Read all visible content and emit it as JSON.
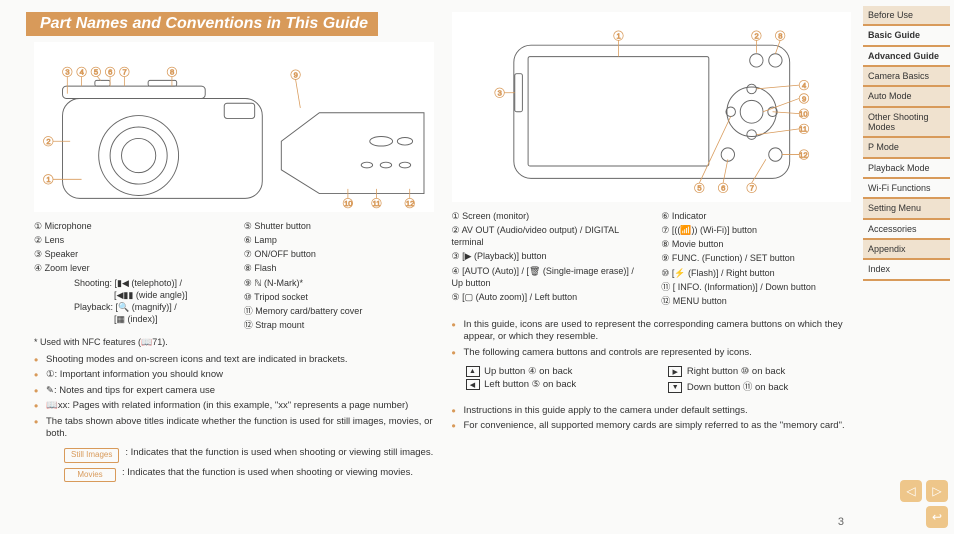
{
  "accent_color": "#d89a5a",
  "title": "Part Names and Conventions in This Guide",
  "page_number": "3",
  "left": {
    "parts_col1": [
      {
        "n": "①",
        "t": "Microphone"
      },
      {
        "n": "②",
        "t": "Lens"
      },
      {
        "n": "③",
        "t": "Speaker"
      },
      {
        "n": "④",
        "t": "Zoom lever"
      }
    ],
    "zoom_shoot_label": "Shooting:",
    "zoom_shoot_a": "[▮◀ (telephoto)] /",
    "zoom_shoot_b": "[◀▮▮ (wide angle)]",
    "zoom_play_label": "Playback:",
    "zoom_play_a": "[🔍 (magnify)] /",
    "zoom_play_b": "[▦ (index)]",
    "parts_col2": [
      {
        "n": "⑤",
        "t": "Shutter button"
      },
      {
        "n": "⑥",
        "t": "Lamp"
      },
      {
        "n": "⑦",
        "t": "ON/OFF button"
      },
      {
        "n": "⑧",
        "t": "Flash"
      },
      {
        "n": "⑨",
        "t": "ℕ (N-Mark)*"
      },
      {
        "n": "⑩",
        "t": "Tripod socket"
      },
      {
        "n": "⑪",
        "t": "Memory card/battery cover"
      },
      {
        "n": "⑫",
        "t": "Strap mount"
      }
    ],
    "footnote": "* Used with NFC features (📖71).",
    "notes": [
      "Shooting modes and on-screen icons and text are indicated in brackets.",
      "①: Important information you should know",
      "✎: Notes and tips for expert camera use",
      "📖xx: Pages with related information (in this example, \"xx\" represents a page number)",
      "The tabs shown above titles indicate whether the function is used for still images, movies, or both."
    ],
    "tag_still": "Still Images",
    "tag_still_desc": ": Indicates that the function is used when shooting or viewing still images.",
    "tag_movies": "Movies",
    "tag_movies_desc": ": Indicates that the function is used when shooting or viewing movies."
  },
  "right": {
    "parts_col1": [
      {
        "n": "①",
        "t": "Screen (monitor)"
      },
      {
        "n": "②",
        "t": "AV OUT (Audio/video output) / DIGITAL terminal"
      },
      {
        "n": "③",
        "t": "[▶ (Playback)] button"
      },
      {
        "n": "④",
        "t": "[AUTO (Auto)] / [🗑 (Single-image erase)] / Up button"
      },
      {
        "n": "⑤",
        "t": "[▢ (Auto zoom)] / Left button"
      }
    ],
    "parts_col2": [
      {
        "n": "⑥",
        "t": "Indicator"
      },
      {
        "n": "⑦",
        "t": "[((📶)) (Wi-Fi)] button"
      },
      {
        "n": "⑧",
        "t": "Movie button"
      },
      {
        "n": "⑨",
        "t": "FUNC. (Function) / SET button"
      },
      {
        "n": "⑩",
        "t": "[⚡ (Flash)] / Right button"
      },
      {
        "n": "⑪",
        "t": "[ INFO. (Information)] / Down button"
      },
      {
        "n": "⑫",
        "t": "MENU button"
      }
    ],
    "notes_top": [
      "In this guide, icons are used to represent the corresponding camera buttons on which they appear, or which they resemble.",
      "The following camera buttons and controls are represented by icons."
    ],
    "icon_grid": [
      {
        "sym": "▲",
        "t": "Up button ④ on back"
      },
      {
        "sym": "▶",
        "t": "Right button ⑩ on back"
      },
      {
        "sym": "◀",
        "t": "Left button ⑤ on back"
      },
      {
        "sym": "▼",
        "t": "Down button ⑪ on back"
      }
    ],
    "notes_bottom": [
      "Instructions in this guide apply to the camera under default settings.",
      "For convenience, all supported memory cards are simply referred to as the \"memory card\"."
    ]
  },
  "nav": [
    {
      "label": "Before Use",
      "shaded": true,
      "bold": false
    },
    {
      "label": "Basic Guide",
      "shaded": false,
      "bold": true
    },
    {
      "label": "Advanced Guide",
      "shaded": false,
      "bold": true
    },
    {
      "label": "Camera Basics",
      "shaded": true,
      "bold": false
    },
    {
      "label": "Auto Mode",
      "shaded": true,
      "bold": false
    },
    {
      "label": "Other Shooting Modes",
      "shaded": true,
      "bold": false
    },
    {
      "label": "P Mode",
      "shaded": true,
      "bold": false
    },
    {
      "label": "Playback Mode",
      "shaded": false,
      "bold": false
    },
    {
      "label": "Wi-Fi Functions",
      "shaded": false,
      "bold": false
    },
    {
      "label": "Setting Menu",
      "shaded": true,
      "bold": false
    },
    {
      "label": "Accessories",
      "shaded": false,
      "bold": false
    },
    {
      "label": "Appendix",
      "shaded": true,
      "bold": false
    },
    {
      "label": "Index",
      "shaded": false,
      "bold": false
    }
  ]
}
